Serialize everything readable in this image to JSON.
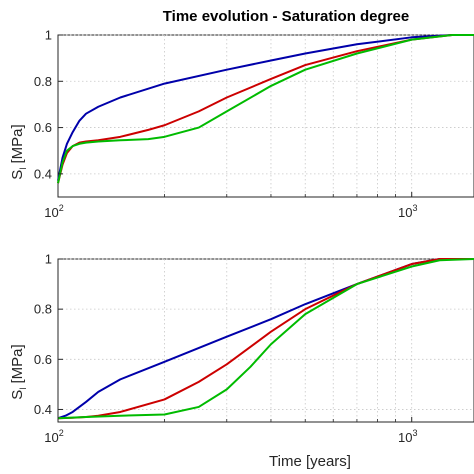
{
  "chart_data": [
    {
      "type": "line",
      "title": "Time evolution - Saturation degree",
      "ylabel": "S",
      "ylabel_sub": "l",
      "ylabel_unit": " [MPa]",
      "xlabel": "",
      "xscale": "log",
      "xlim": [
        100,
        1500
      ],
      "ylim": [
        0.3,
        1.0
      ],
      "yticks": [
        "0.4",
        "0.6",
        "0.8",
        "1"
      ],
      "ytick_values": [
        0.4,
        0.6,
        0.8,
        1.0
      ],
      "xticks": [
        {
          "base": "10",
          "exp": "2",
          "value": 100
        },
        {
          "base": "10",
          "exp": "3",
          "value": 1000
        }
      ],
      "grid": true,
      "series": [
        {
          "color": "#0000aa",
          "x": [
            100,
            103,
            106,
            110,
            115,
            120,
            130,
            150,
            200,
            300,
            400,
            500,
            700,
            1000,
            1300,
            1500
          ],
          "y": [
            0.37,
            0.47,
            0.53,
            0.58,
            0.63,
            0.66,
            0.69,
            0.73,
            0.79,
            0.85,
            0.89,
            0.92,
            0.96,
            0.99,
            1.0,
            1.0
          ]
        },
        {
          "color": "#cc0000",
          "x": [
            100,
            103,
            106,
            110,
            115,
            120,
            130,
            150,
            180,
            200,
            250,
            300,
            400,
            500,
            700,
            1000,
            1300,
            1500
          ],
          "y": [
            0.36,
            0.44,
            0.49,
            0.52,
            0.535,
            0.54,
            0.545,
            0.56,
            0.59,
            0.61,
            0.67,
            0.73,
            0.81,
            0.87,
            0.93,
            0.98,
            1.0,
            1.0
          ]
        },
        {
          "color": "#00bb00",
          "x": [
            100,
            103,
            106,
            110,
            115,
            120,
            130,
            150,
            180,
            200,
            250,
            300,
            400,
            500,
            700,
            1000,
            1300,
            1500
          ],
          "y": [
            0.36,
            0.45,
            0.5,
            0.52,
            0.53,
            0.535,
            0.54,
            0.545,
            0.55,
            0.56,
            0.6,
            0.67,
            0.78,
            0.85,
            0.92,
            0.98,
            1.0,
            1.0
          ]
        }
      ]
    },
    {
      "type": "line",
      "title": "",
      "ylabel": "S",
      "ylabel_sub": "l",
      "ylabel_unit": " [MPa]",
      "xlabel": "Time [years]",
      "xscale": "log",
      "xlim": [
        100,
        1500
      ],
      "ylim": [
        0.35,
        1.0
      ],
      "yticks": [
        "0.4",
        "0.6",
        "0.8",
        "1"
      ],
      "ytick_values": [
        0.4,
        0.6,
        0.8,
        1.0
      ],
      "xticks": [
        {
          "base": "10",
          "exp": "2",
          "value": 100
        },
        {
          "base": "10",
          "exp": "3",
          "value": 1000
        }
      ],
      "grid": true,
      "series": [
        {
          "color": "#0000aa",
          "x": [
            100,
            105,
            110,
            120,
            130,
            150,
            200,
            300,
            400,
            500,
            700,
            1000,
            1200,
            1500
          ],
          "y": [
            0.365,
            0.375,
            0.39,
            0.43,
            0.47,
            0.52,
            0.59,
            0.69,
            0.76,
            0.82,
            0.9,
            0.98,
            1.0,
            1.0
          ]
        },
        {
          "color": "#cc0000",
          "x": [
            100,
            110,
            120,
            130,
            150,
            200,
            250,
            300,
            400,
            500,
            700,
            1000,
            1200,
            1500
          ],
          "y": [
            0.365,
            0.367,
            0.37,
            0.375,
            0.39,
            0.44,
            0.51,
            0.58,
            0.71,
            0.8,
            0.9,
            0.98,
            1.0,
            1.0
          ]
        },
        {
          "color": "#00bb00",
          "x": [
            100,
            120,
            150,
            200,
            250,
            300,
            350,
            400,
            500,
            700,
            1000,
            1200,
            1500
          ],
          "y": [
            0.365,
            0.37,
            0.375,
            0.38,
            0.41,
            0.48,
            0.57,
            0.66,
            0.78,
            0.9,
            0.97,
            0.995,
            1.0
          ]
        }
      ]
    }
  ]
}
